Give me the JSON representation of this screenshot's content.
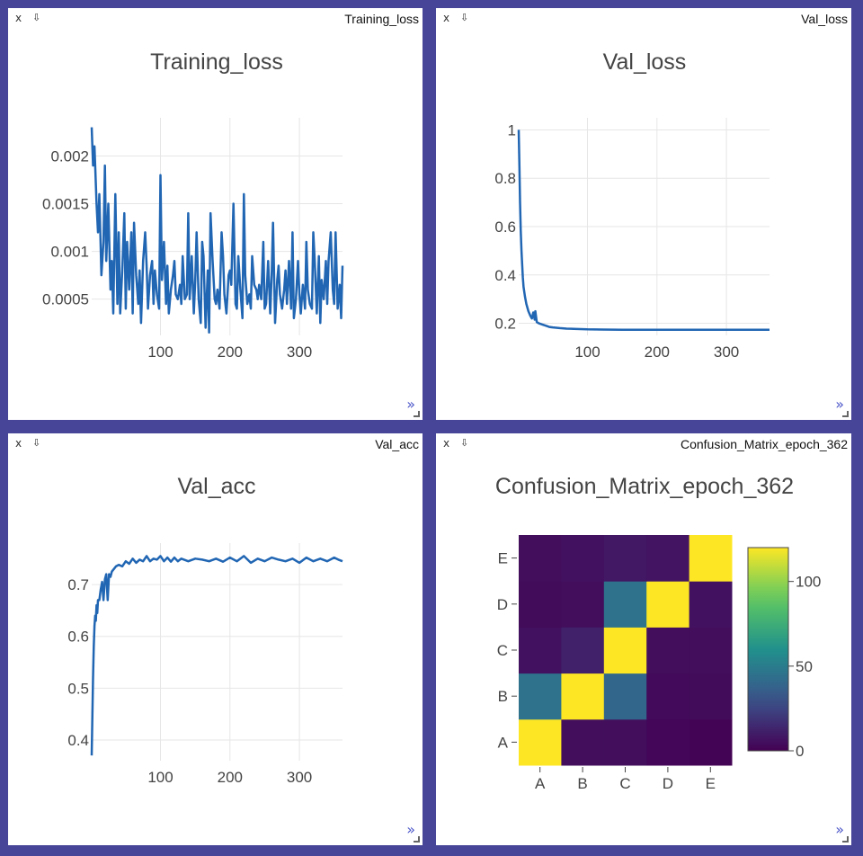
{
  "window": {
    "close_label": "x",
    "download_label": "⇩",
    "expand_label": "»"
  },
  "panes": [
    {
      "id": "training_loss",
      "label": "Training_loss"
    },
    {
      "id": "val_loss",
      "label": "Val_loss"
    },
    {
      "id": "val_acc",
      "label": "Val_acc"
    },
    {
      "id": "confusion",
      "label": "Confusion_Matrix_epoch_362"
    }
  ],
  "colors": {
    "background": "#474598",
    "line": "#2166b3",
    "expand_icon": "#4a55c8"
  },
  "chart_data": [
    {
      "type": "line",
      "title": "Training_loss",
      "xlim": [
        1,
        362
      ],
      "ylim": [
        0.00012,
        0.0024
      ],
      "x_ticks": [
        100,
        200,
        300
      ],
      "y_ticks": [
        0.0005,
        0.001,
        0.0015,
        0.002
      ],
      "y_tick_labels": [
        "0.0005",
        "0.001",
        "0.0015",
        "0.002"
      ],
      "grid": true,
      "series": [
        {
          "x": [
            1,
            3,
            5,
            8,
            10,
            12,
            15,
            18,
            20,
            22,
            25,
            28,
            30,
            32,
            35,
            38,
            40,
            42,
            45,
            48,
            50,
            52,
            55,
            58,
            60,
            62,
            65,
            68,
            70,
            72,
            75,
            78,
            80,
            82,
            85,
            88,
            90,
            92,
            95,
            98,
            100,
            102,
            105,
            108,
            110,
            112,
            115,
            118,
            120,
            122,
            125,
            128,
            130,
            132,
            135,
            138,
            140,
            142,
            145,
            148,
            150,
            152,
            155,
            158,
            160,
            162,
            165,
            168,
            170,
            172,
            175,
            178,
            180,
            182,
            185,
            188,
            190,
            192,
            195,
            198,
            200,
            202,
            205,
            208,
            210,
            212,
            215,
            218,
            220,
            222,
            225,
            228,
            230,
            232,
            235,
            238,
            240,
            242,
            245,
            248,
            250,
            252,
            255,
            258,
            260,
            262,
            265,
            268,
            270,
            272,
            275,
            278,
            280,
            282,
            285,
            288,
            290,
            292,
            295,
            298,
            300,
            302,
            305,
            308,
            310,
            312,
            315,
            318,
            320,
            322,
            325,
            328,
            330,
            332,
            335,
            338,
            340,
            342,
            345,
            348,
            350,
            352,
            355,
            358,
            360,
            362
          ],
          "y": [
            0.0023,
            0.0019,
            0.0021,
            0.0015,
            0.0012,
            0.0016,
            0.00075,
            0.0011,
            0.0019,
            0.0009,
            0.0015,
            0.0006,
            0.0009,
            0.00035,
            0.0016,
            0.00045,
            0.0012,
            0.00035,
            0.0008,
            0.0014,
            0.0004,
            0.0011,
            0.0006,
            0.0012,
            0.00035,
            0.0013,
            0.00075,
            0.00045,
            0.0008,
            0.00025,
            0.0009,
            0.0012,
            0.00085,
            0.0004,
            0.00075,
            0.0009,
            0.00045,
            0.0008,
            0.00055,
            0.0004,
            0.0018,
            0.0007,
            0.0011,
            0.00045,
            0.00085,
            0.00035,
            0.0006,
            0.00075,
            0.0009,
            0.00055,
            0.0005,
            0.00065,
            0.00045,
            0.00095,
            0.0005,
            0.00055,
            0.0014,
            0.0005,
            0.00095,
            0.00035,
            0.0007,
            0.0012,
            0.0005,
            0.00025,
            0.0011,
            0.00095,
            0.0002,
            0.0008,
            0.00015,
            0.0014,
            0.0009,
            0.0005,
            0.00045,
            0.0006,
            0.0004,
            0.0012,
            0.00095,
            0.00055,
            0.00035,
            0.00075,
            0.0008,
            0.00065,
            0.0015,
            0.00045,
            0.0004,
            0.00095,
            0.0006,
            0.0003,
            0.0016,
            0.00075,
            0.00045,
            0.00055,
            0.0004,
            0.00095,
            0.00065,
            0.0006,
            0.0005,
            0.00065,
            0.0005,
            0.0011,
            0.0004,
            0.00045,
            0.0009,
            0.00035,
            0.00075,
            0.0013,
            0.00025,
            0.0007,
            0.00085,
            0.00055,
            0.0004,
            0.0006,
            0.0008,
            0.00045,
            0.0009,
            0.0004,
            0.0012,
            0.0003,
            0.0005,
            0.0009,
            0.00055,
            0.00035,
            0.00065,
            0.0004,
            0.0011,
            0.0006,
            0.00045,
            0.0004,
            0.0012,
            0.0009,
            0.00035,
            0.00095,
            0.00025,
            0.0007,
            0.0005,
            0.0009,
            0.00045,
            0.0009,
            0.0012,
            0.0006,
            0.00045,
            0.0012,
            0.0004,
            0.00065,
            0.0003,
            0.00085
          ]
        }
      ]
    },
    {
      "type": "line",
      "title": "Val_loss",
      "xlim": [
        1,
        362
      ],
      "ylim": [
        0.15,
        1.05
      ],
      "x_ticks": [
        100,
        200,
        300
      ],
      "y_ticks": [
        0.2,
        0.4,
        0.6,
        0.8,
        1
      ],
      "y_tick_labels": [
        "0.2",
        "0.4",
        "0.6",
        "0.8",
        "1"
      ],
      "grid": true,
      "series": [
        {
          "x": [
            1,
            2,
            3,
            4,
            5,
            6,
            7,
            8,
            10,
            12,
            15,
            18,
            20,
            22,
            24,
            25,
            27,
            30,
            35,
            40,
            45,
            50,
            60,
            70,
            80,
            90,
            100,
            120,
            150,
            200,
            250,
            300,
            362
          ],
          "y": [
            1.0,
            0.85,
            0.7,
            0.58,
            0.5,
            0.44,
            0.39,
            0.35,
            0.31,
            0.28,
            0.25,
            0.23,
            0.22,
            0.245,
            0.215,
            0.25,
            0.205,
            0.2,
            0.195,
            0.19,
            0.185,
            0.183,
            0.18,
            0.178,
            0.177,
            0.176,
            0.175,
            0.174,
            0.173,
            0.173,
            0.173,
            0.173,
            0.173
          ]
        }
      ]
    },
    {
      "type": "line",
      "title": "Val_acc",
      "xlim": [
        1,
        362
      ],
      "ylim": [
        0.36,
        0.78
      ],
      "x_ticks": [
        100,
        200,
        300
      ],
      "y_ticks": [
        0.4,
        0.5,
        0.6,
        0.7
      ],
      "y_tick_labels": [
        "0.4",
        "0.5",
        "0.6",
        "0.7"
      ],
      "grid": true,
      "series": [
        {
          "x": [
            1,
            2,
            3,
            4,
            5,
            6,
            7,
            8,
            9,
            10,
            12,
            14,
            16,
            18,
            20,
            22,
            24,
            26,
            28,
            30,
            33,
            36,
            40,
            45,
            50,
            55,
            60,
            65,
            70,
            75,
            80,
            85,
            90,
            95,
            100,
            105,
            110,
            115,
            120,
            125,
            130,
            140,
            150,
            160,
            170,
            180,
            190,
            200,
            210,
            220,
            230,
            240,
            250,
            260,
            270,
            280,
            290,
            300,
            310,
            320,
            330,
            340,
            350,
            356,
            362
          ],
          "y": [
            0.37,
            0.45,
            0.52,
            0.58,
            0.62,
            0.64,
            0.63,
            0.66,
            0.645,
            0.67,
            0.67,
            0.69,
            0.705,
            0.67,
            0.71,
            0.72,
            0.67,
            0.72,
            0.715,
            0.725,
            0.73,
            0.735,
            0.738,
            0.735,
            0.745,
            0.74,
            0.75,
            0.742,
            0.748,
            0.745,
            0.755,
            0.745,
            0.75,
            0.748,
            0.755,
            0.745,
            0.752,
            0.744,
            0.752,
            0.745,
            0.75,
            0.745,
            0.75,
            0.748,
            0.745,
            0.75,
            0.744,
            0.752,
            0.745,
            0.755,
            0.742,
            0.75,
            0.745,
            0.752,
            0.748,
            0.745,
            0.75,
            0.742,
            0.752,
            0.745,
            0.75,
            0.745,
            0.752,
            0.748,
            0.745
          ]
        }
      ]
    },
    {
      "type": "heatmap",
      "title": "Confusion_Matrix_epoch_362",
      "x_categories": [
        "A",
        "B",
        "C",
        "D",
        "E"
      ],
      "y_categories": [
        "A",
        "B",
        "C",
        "D",
        "E"
      ],
      "z": [
        [
          120,
          5,
          5,
          2,
          1
        ],
        [
          45,
          120,
          40,
          3,
          4
        ],
        [
          6,
          12,
          120,
          5,
          5
        ],
        [
          4,
          5,
          45,
          120,
          6
        ],
        [
          5,
          6,
          8,
          7,
          120
        ]
      ],
      "zlim": [
        0,
        120
      ],
      "colorbar_ticks": [
        0,
        50,
        100
      ],
      "colorscale": "viridis"
    }
  ]
}
